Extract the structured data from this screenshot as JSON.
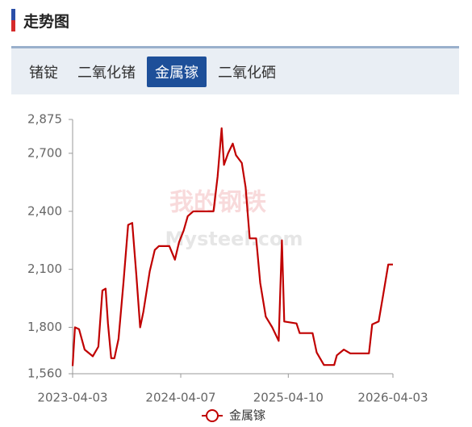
{
  "header": {
    "title": "走势图"
  },
  "tabs": [
    "锗锭",
    "二氧化锗",
    "金属镓",
    "二氧化硒"
  ],
  "active_tab": 2,
  "watermark": {
    "cn": "我的钢铁",
    "en": "Mysteel.com"
  },
  "chart_data": {
    "type": "line",
    "x": [
      "2023-04-03",
      "2023-04-11",
      "2023-04-25",
      "2023-05-14",
      "2023-06-11",
      "2023-06-30",
      "2023-07-14",
      "2023-07-25",
      "2023-08-02",
      "2023-08-13",
      "2023-08-24",
      "2023-09-07",
      "2023-09-24",
      "2023-10-10",
      "2023-10-24",
      "2023-11-07",
      "2023-11-20",
      "2023-12-01",
      "2023-12-23",
      "2024-01-09",
      "2024-01-23",
      "2024-02-28",
      "2024-03-18",
      "2024-04-01",
      "2024-04-17",
      "2024-05-01",
      "2024-05-20",
      "2024-07-28",
      "2024-08-11",
      "2024-08-25",
      "2024-09-02",
      "2024-09-16",
      "2024-10-02",
      "2024-10-13",
      "2024-11-02",
      "2024-11-15",
      "2024-11-29",
      "2024-12-21",
      "2025-01-04",
      "2025-01-23",
      "2025-02-14",
      "2025-03-08",
      "2025-03-19",
      "2025-03-27",
      "2025-05-08",
      "2025-05-19",
      "2025-07-02",
      "2025-07-16",
      "2025-08-10",
      "2025-09-14",
      "2025-09-23",
      "2025-10-17",
      "2025-11-08",
      "2026-01-11",
      "2026-01-22",
      "2026-02-13",
      "2026-03-01",
      "2026-03-18",
      "2026-04-03"
    ],
    "series": [
      {
        "name": "金属镓",
        "color": "#c00000",
        "values": [
          1600,
          1800,
          1790,
          1685,
          1650,
          1700,
          1990,
          2000,
          1820,
          1640,
          1640,
          1740,
          2030,
          2330,
          2340,
          2070,
          1800,
          1880,
          2090,
          2200,
          2220,
          2220,
          2150,
          2240,
          2300,
          2375,
          2400,
          2400,
          2580,
          2830,
          2640,
          2700,
          2750,
          2690,
          2650,
          2525,
          2260,
          2260,
          2030,
          1855,
          1800,
          1730,
          2250,
          1830,
          1820,
          1770,
          1770,
          1670,
          1605,
          1605,
          1655,
          1685,
          1665,
          1665,
          1815,
          1830,
          1970,
          2125,
          2125
        ]
      }
    ],
    "xlim": [
      "2023-04-03",
      "2026-04-03"
    ],
    "xticks": [
      "2023-04-03",
      "2024-04-07",
      "2025-04-10",
      "2026-04-03"
    ],
    "ylim": [
      1560,
      2875
    ],
    "yticks": [
      {
        "value": 1560,
        "label": "1,560"
      },
      {
        "value": 1800,
        "label": "1,800"
      },
      {
        "value": 2100,
        "label": "2,100"
      },
      {
        "value": 2400,
        "label": "2,400"
      },
      {
        "value": 2700,
        "label": "2,700"
      },
      {
        "value": 2875,
        "label": "2,875"
      }
    ],
    "grid": false,
    "legend": "bottom"
  }
}
